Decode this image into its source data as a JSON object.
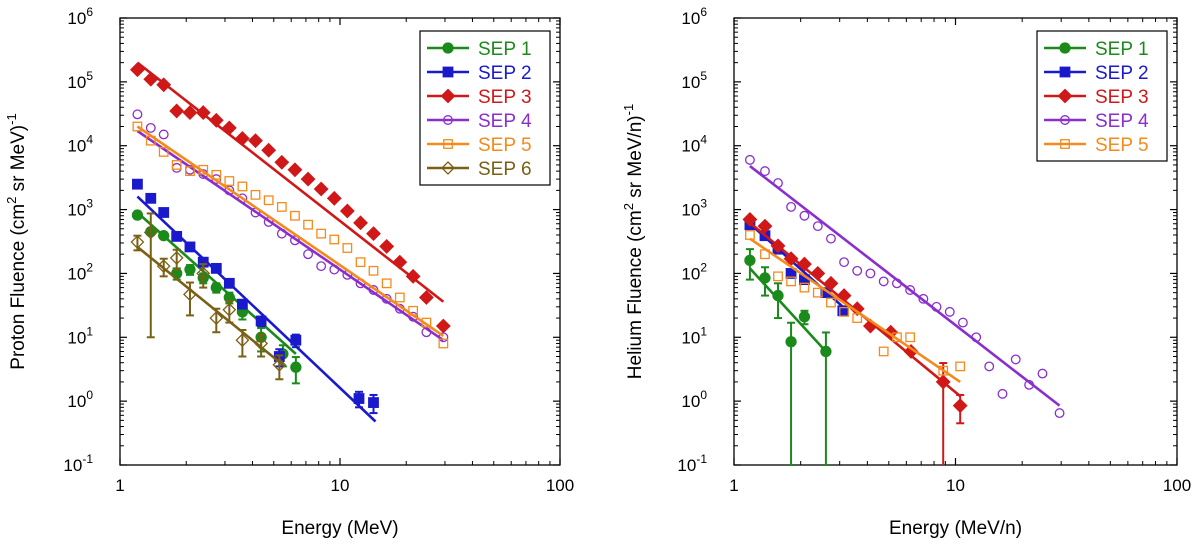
{
  "chart_data": [
    {
      "type": "scatter",
      "title": "",
      "xlabel": "Energy (MeV)",
      "ylabel_main": "Proton Fluence (cm",
      "ylabel_sup": "2",
      "ylabel_mid": " sr MeV)",
      "ylabel_sup2": "-1",
      "xscale": "log",
      "yscale": "log",
      "xlim": [
        1,
        100
      ],
      "ylim": [
        0.1,
        1000000
      ],
      "x_ticks": [
        1,
        10,
        100
      ],
      "x_tick_labels": [
        "1",
        "10",
        "100"
      ],
      "y_ticks": [
        0.1,
        1,
        10,
        100,
        1000,
        10000,
        100000,
        1000000
      ],
      "y_tick_base": [
        "10",
        "10",
        "10",
        "10",
        "10",
        "10",
        "10",
        "10"
      ],
      "y_tick_exp": [
        "-1",
        "0",
        "1",
        "2",
        "3",
        "4",
        "5",
        "6"
      ],
      "legend_position": "top-right",
      "series": [
        {
          "name": "SEP 1",
          "color": "#1a8a1a",
          "marker": "circle",
          "filled": true,
          "x": [
            1.2,
            1.38,
            1.58,
            1.81,
            2.08,
            2.39,
            2.74,
            3.14,
            3.6,
            4.38,
            5.5,
            6.3
          ],
          "y": [
            820,
            450,
            390,
            100,
            115,
            85,
            60,
            42,
            25,
            10,
            5.5,
            3.4
          ],
          "err": [
            0,
            0,
            0,
            20,
            20,
            15,
            10,
            8,
            6,
            4,
            2,
            1.5
          ],
          "fit": [
            [
              1.2,
              900
            ],
            [
              6.3,
              5.5
            ]
          ]
        },
        {
          "name": "SEP 2",
          "color": "#1a1acc",
          "marker": "square",
          "filled": true,
          "x": [
            1.2,
            1.38,
            1.58,
            1.81,
            2.08,
            2.39,
            2.74,
            3.14,
            3.6,
            4.38,
            5.3,
            6.3,
            12.2,
            14.2
          ],
          "y": [
            2500,
            1500,
            900,
            380,
            260,
            150,
            120,
            70,
            33,
            18,
            5,
            9,
            1.1,
            0.95
          ],
          "err": [
            0,
            0,
            0,
            0,
            0,
            0,
            0,
            0,
            0,
            3,
            1.5,
            2,
            0.3,
            0.3
          ],
          "fit": [
            [
              1.2,
              1600
            ],
            [
              14.5,
              0.48
            ]
          ]
        },
        {
          "name": "SEP 3",
          "color": "#d01818",
          "marker": "diamond",
          "filled": true,
          "x": [
            1.2,
            1.38,
            1.58,
            1.81,
            2.08,
            2.39,
            2.74,
            3.14,
            3.6,
            4.13,
            4.74,
            5.44,
            6.24,
            7.16,
            8.21,
            9.42,
            10.8,
            12.4,
            14.2,
            16.3,
            18.7,
            21.5,
            24.7,
            29.5
          ],
          "y": [
            155000,
            110000,
            90000,
            35000,
            33000,
            33000,
            25000,
            19000,
            13000,
            12000,
            8500,
            5500,
            4200,
            3000,
            2100,
            1500,
            950,
            620,
            420,
            265,
            150,
            90,
            42,
            15
          ],
          "err": [],
          "fit": [
            [
              1.2,
              200000
            ],
            [
              29.5,
              36
            ]
          ]
        },
        {
          "name": "SEP 4",
          "color": "#8a2ecc",
          "marker": "circle",
          "filled": false,
          "x": [
            1.2,
            1.38,
            1.58,
            1.81,
            2.08,
            2.39,
            2.74,
            3.14,
            3.6,
            4.13,
            4.74,
            5.44,
            6.24,
            7.16,
            8.21,
            9.42,
            10.8,
            12.4,
            14.2,
            16.3,
            18.7,
            21.5,
            24.7,
            29.5
          ],
          "y": [
            31000,
            19000,
            15000,
            4500,
            4200,
            3600,
            3000,
            2000,
            1500,
            900,
            640,
            420,
            330,
            200,
            130,
            115,
            95,
            70,
            55,
            40,
            28,
            21,
            12,
            10
          ],
          "err": [],
          "fit": [
            [
              1.2,
              17000
            ],
            [
              29.5,
              9
            ]
          ]
        },
        {
          "name": "SEP 5",
          "color": "#f58a1a",
          "marker": "square",
          "filled": false,
          "x": [
            1.2,
            1.38,
            1.58,
            1.81,
            2.08,
            2.39,
            2.74,
            3.14,
            3.6,
            4.13,
            4.74,
            5.44,
            6.24,
            7.16,
            8.21,
            9.42,
            10.8,
            12.4,
            14.2,
            16.3,
            18.7,
            21.5,
            24.7,
            29.5
          ],
          "y": [
            20000,
            12000,
            8000,
            5000,
            4000,
            4200,
            3500,
            2800,
            2300,
            1700,
            1400,
            1100,
            800,
            580,
            420,
            340,
            250,
            150,
            110,
            70,
            42,
            26,
            17,
            8
          ],
          "err": [],
          "fit": [
            [
              1.2,
              20000
            ],
            [
              29.5,
              10.5
            ]
          ]
        },
        {
          "name": "SEP 6",
          "color": "#7a6014",
          "marker": "diamond",
          "filled": false,
          "x": [
            1.2,
            1.38,
            1.58,
            1.81,
            2.08,
            2.39,
            2.74,
            3.14,
            3.6,
            4.38,
            5.3
          ],
          "y": [
            310,
            440,
            130,
            175,
            47,
            100,
            20,
            27,
            9,
            8,
            3.7
          ],
          "err": [
            80,
            430,
            40,
            60,
            25,
            40,
            8,
            10,
            4,
            3,
            1.5
          ],
          "fit": [
            [
              1.2,
              260
            ],
            [
              5.5,
              3.7
            ]
          ]
        }
      ]
    },
    {
      "type": "scatter",
      "title": "",
      "xlabel": "Energy (MeV/n)",
      "ylabel_main": "Helium Fluence (cm",
      "ylabel_sup": "2",
      "ylabel_mid": " sr MeV/n)",
      "ylabel_sup2": "-1",
      "xscale": "log",
      "yscale": "log",
      "xlim": [
        1,
        100
      ],
      "ylim": [
        0.1,
        1000000
      ],
      "x_ticks": [
        1,
        10,
        100
      ],
      "x_tick_labels": [
        "1",
        "10",
        "100"
      ],
      "y_ticks": [
        0.1,
        1,
        10,
        100,
        1000,
        10000,
        100000,
        1000000
      ],
      "y_tick_base": [
        "10",
        "10",
        "10",
        "10",
        "10",
        "10",
        "10",
        "10"
      ],
      "y_tick_exp": [
        "-1",
        "0",
        "1",
        "2",
        "3",
        "4",
        "5",
        "6"
      ],
      "legend_position": "top-right",
      "series": [
        {
          "name": "SEP 1",
          "color": "#1a8a1a",
          "marker": "circle",
          "filled": true,
          "x": [
            1.18,
            1.38,
            1.58,
            1.81,
            2.08,
            2.6
          ],
          "y": [
            160,
            85,
            45,
            8.5,
            21,
            6
          ],
          "err": [
            80,
            40,
            25,
            8.4,
            5,
            5.9
          ],
          "fit": [
            [
              1.18,
              120
            ],
            [
              2.6,
              6
            ]
          ]
        },
        {
          "name": "SEP 2",
          "color": "#1a1acc",
          "marker": "square",
          "filled": true,
          "x": [
            1.18,
            1.38,
            1.58,
            1.81,
            2.08,
            2.6,
            3.1
          ],
          "y": [
            580,
            390,
            240,
            100,
            80,
            50,
            26
          ],
          "err": [],
          "fit": [
            [
              1.18,
              600
            ],
            [
              3.1,
              30
            ]
          ]
        },
        {
          "name": "SEP 3",
          "color": "#d01818",
          "marker": "diamond",
          "filled": true,
          "x": [
            1.18,
            1.38,
            1.58,
            1.81,
            2.08,
            2.39,
            2.74,
            3.14,
            3.6,
            4.13,
            5.1,
            6.3,
            8.8,
            10.5
          ],
          "y": [
            700,
            550,
            270,
            170,
            140,
            100,
            70,
            45,
            28,
            15,
            12,
            6,
            2,
            0.85
          ],
          "err": [
            0,
            0,
            0,
            0,
            0,
            0,
            0,
            0,
            0,
            0,
            0,
            0,
            1.95,
            0.4
          ],
          "fit": [
            [
              1.18,
              620
            ],
            [
              10.5,
              1.2
            ]
          ]
        },
        {
          "name": "SEP 4",
          "color": "#8a2ecc",
          "marker": "circle",
          "filled": false,
          "x": [
            1.18,
            1.38,
            1.58,
            1.81,
            2.08,
            2.39,
            2.74,
            3.14,
            3.6,
            4.13,
            4.74,
            5.44,
            6.24,
            7.16,
            8.21,
            9.42,
            10.8,
            12.4,
            14.2,
            16.3,
            18.7,
            21.5,
            24.7,
            29.5
          ],
          "y": [
            6000,
            4000,
            2600,
            1100,
            800,
            550,
            350,
            150,
            110,
            100,
            75,
            70,
            55,
            40,
            30,
            25,
            17,
            10,
            3.5,
            1.3,
            4.5,
            1.8,
            2.7,
            0.65
          ],
          "err": [],
          "fit": [
            [
              1.18,
              4800
            ],
            [
              29.5,
              0.85
            ]
          ]
        },
        {
          "name": "SEP 5",
          "color": "#f58a1a",
          "marker": "square",
          "filled": false,
          "x": [
            1.18,
            1.38,
            1.58,
            1.81,
            2.08,
            2.39,
            2.74,
            3.14,
            3.6,
            4.74,
            5.44,
            6.24,
            8.8,
            10.5
          ],
          "y": [
            400,
            200,
            90,
            75,
            60,
            50,
            35,
            25,
            20,
            6,
            10,
            10,
            3,
            3.5
          ],
          "err": [],
          "fit": [
            [
              1.18,
              350
            ],
            [
              10.5,
              2
            ]
          ]
        }
      ]
    }
  ]
}
